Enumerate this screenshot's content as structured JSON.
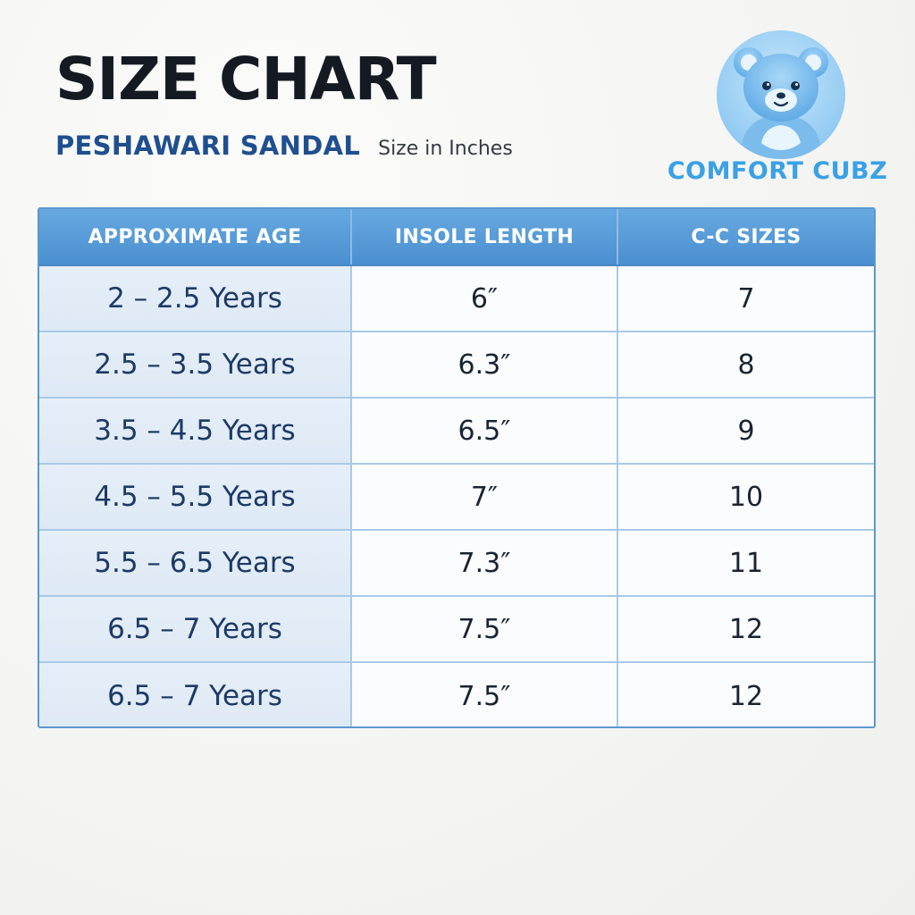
{
  "header": {
    "title": "SIZE CHART",
    "subtitle": "PESHAWARI SANDAL",
    "size_note": "Size in Inches"
  },
  "logo": {
    "brand_name": "COMFORT CUBZ",
    "icon": "teddy-bear-icon",
    "colors": {
      "badge": "#9fd3f5",
      "bear": "#6fb6ec",
      "text": "#3aa1e6"
    }
  },
  "table": {
    "colors": {
      "header_bg": "#5a9bd8",
      "border": "#5c98cf",
      "first_column_bg": "#e3edf7"
    },
    "columns": [
      "APPROXIMATE AGE",
      "INSOLE LENGTH",
      "C-C SIZES"
    ],
    "rows": [
      {
        "age": "2 – 2.5 Years",
        "insole": "6″",
        "cc_size": "7"
      },
      {
        "age": "2.5 – 3.5 Years",
        "insole": "6.3″",
        "cc_size": "8"
      },
      {
        "age": "3.5 – 4.5 Years",
        "insole": "6.5″",
        "cc_size": "9"
      },
      {
        "age": "4.5 – 5.5 Years",
        "insole": "7″",
        "cc_size": "10"
      },
      {
        "age": "5.5 – 6.5 Years",
        "insole": "7.3″",
        "cc_size": "11"
      },
      {
        "age": "6.5 – 7 Years",
        "insole": "7.5″",
        "cc_size": "12"
      },
      {
        "age": "6.5 – 7 Years",
        "insole": "7.5″",
        "cc_size": "12"
      }
    ]
  }
}
